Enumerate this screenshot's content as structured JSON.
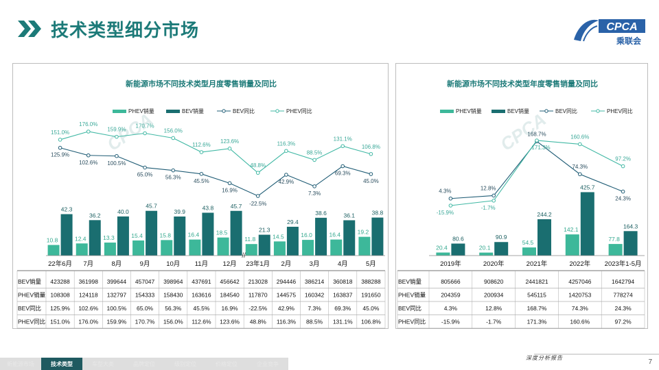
{
  "page_title": "技术类型细分市场",
  "logo": {
    "text": "CPCA",
    "cn": "乘联会"
  },
  "watermark": "CPCA",
  "chart_data": [
    {
      "type": "bar",
      "title": "新能源市场不同技术类型月度零售销量及同比",
      "legend": [
        "PHEV销量",
        "BEV销量",
        "BEV同比",
        "PHEV同比"
      ],
      "categories": [
        "22年6月",
        "7月",
        "8月",
        "9月",
        "10月",
        "11月",
        "12月",
        "23年1月",
        "2月",
        "3月",
        "4月",
        "5月"
      ],
      "series": [
        {
          "name": "PHEV销量",
          "values": [
            108308,
            124118,
            132797,
            154333,
            158430,
            163616,
            184540,
            117870,
            144575,
            160342,
            163837,
            191650
          ],
          "labels": [
            "10.8",
            "12.4",
            "13.3",
            "15.4",
            "15.8",
            "16.4",
            "18.5",
            "11.8",
            "14.5",
            "16.0",
            "16.4",
            "19.2"
          ],
          "color": "#3db89a"
        },
        {
          "name": "BEV销量",
          "values": [
            423288,
            361998,
            399644,
            457047,
            398964,
            437691,
            456642,
            213028,
            294446,
            386214,
            360818,
            388288
          ],
          "labels": [
            "42.3",
            "36.2",
            "40.0",
            "45.7",
            "39.9",
            "43.8",
            "45.7",
            "21.3",
            "29.4",
            "38.6",
            "36.1",
            "38.8"
          ],
          "color": "#1a6e70"
        }
      ],
      "lines": [
        {
          "name": "BEV同比",
          "values": [
            125.9,
            102.6,
            100.5,
            65.0,
            56.3,
            45.5,
            16.9,
            -22.5,
            42.9,
            7.3,
            69.3,
            45.0
          ],
          "labels": [
            "125.9%",
            "102.6%",
            "100.5%",
            "65.0%",
            "56.3%",
            "45.5%",
            "16.9%",
            "-22.5%",
            "42.9%",
            "7.3%",
            "69.3%",
            "45.0%"
          ],
          "color": "#1f5c75"
        },
        {
          "name": "PHEV同比",
          "values": [
            151.0,
            176.0,
            159.9,
            170.7,
            156.0,
            112.6,
            123.6,
            48.8,
            116.3,
            88.5,
            131.1,
            106.8
          ],
          "labels": [
            "151.0%",
            "176.0%",
            "159.9%",
            "170.7%",
            "156.0%",
            "112.6%",
            "123.6%",
            "48.8%",
            "116.3%",
            "88.5%",
            "131.1%",
            "106.8%"
          ],
          "color": "#40b8a4"
        }
      ],
      "table": {
        "rows": [
          {
            "label": "BEV销量",
            "cells": [
              "423288",
              "361998",
              "399644",
              "457047",
              "398964",
              "437691",
              "456642",
              "213028",
              "294446",
              "386214",
              "360818",
              "388288"
            ]
          },
          {
            "label": "PHEV销量",
            "cells": [
              "108308",
              "124118",
              "132797",
              "154333",
              "158430",
              "163616",
              "184540",
              "117870",
              "144575",
              "160342",
              "163837",
              "191650"
            ]
          },
          {
            "label": "BEV同比",
            "cells": [
              "125.9%",
              "102.6%",
              "100.5%",
              "65.0%",
              "56.3%",
              "45.5%",
              "16.9%",
              "-22.5%",
              "42.9%",
              "7.3%",
              "69.3%",
              "45.0%"
            ]
          },
          {
            "label": "PHEV同比",
            "cells": [
              "151.0%",
              "176.0%",
              "159.9%",
              "170.7%",
              "156.0%",
              "112.6%",
              "123.6%",
              "48.8%",
              "116.3%",
              "88.5%",
              "131.1%",
              "106.8%"
            ]
          }
        ]
      }
    },
    {
      "type": "bar",
      "title": "新能源市场不同技术类型年度零售销量及同比",
      "legend": [
        "PHEV销量",
        "BEV销量",
        "BEV同比",
        "PHEV同比"
      ],
      "categories": [
        "2019年",
        "2020年",
        "2021年",
        "2022年",
        "2023年1-5月"
      ],
      "series": [
        {
          "name": "PHEV销量",
          "values": [
            204359,
            200934,
            545115,
            1420753,
            778274
          ],
          "labels": [
            "20.4",
            "20.1",
            "54.5",
            "142.1",
            "77.8"
          ],
          "color": "#3db89a"
        },
        {
          "name": "BEV销量",
          "values": [
            805666,
            908620,
            2441821,
            4257046,
            1642794
          ],
          "labels": [
            "80.6",
            "90.9",
            "244.2",
            "425.7",
            "164.3"
          ],
          "color": "#1a6e70"
        }
      ],
      "lines": [
        {
          "name": "BEV同比",
          "values": [
            4.3,
            12.8,
            168.7,
            74.3,
            24.3
          ],
          "labels": [
            "4.3%",
            "12.8%",
            "168.7%",
            "74.3%",
            "24.3%"
          ],
          "color": "#1f5c75"
        },
        {
          "name": "PHEV同比",
          "values": [
            -15.9,
            -1.7,
            171.3,
            160.6,
            97.2
          ],
          "labels": [
            "-15.9%",
            "-1.7%",
            "171.3%",
            "160.6%",
            "97.2%"
          ],
          "color": "#40b8a4"
        }
      ],
      "table": {
        "rows": [
          {
            "label": "BEV销量",
            "cells": [
              "805666",
              "908620",
              "2441821",
              "4257046",
              "1642794"
            ]
          },
          {
            "label": "PHEV销量",
            "cells": [
              "204359",
              "200934",
              "545115",
              "1420753",
              "778274"
            ]
          },
          {
            "label": "BEV同比",
            "cells": [
              "4.3%",
              "12.8%",
              "168.7%",
              "74.3%",
              "24.3%"
            ]
          },
          {
            "label": "PHEV同比",
            "cells": [
              "-15.9%",
              "-1.7%",
              "171.3%",
              "160.6%",
              "97.2%"
            ]
          }
        ]
      }
    }
  ],
  "nav": {
    "items": [
      "新能源市场",
      "技术类型",
      "车型大类",
      "品牌定位",
      "级别定位",
      "价格定位",
      "企业竞争"
    ],
    "active_index": 1
  },
  "footer": {
    "report_label": "深度分析报告",
    "page_number": "7"
  }
}
